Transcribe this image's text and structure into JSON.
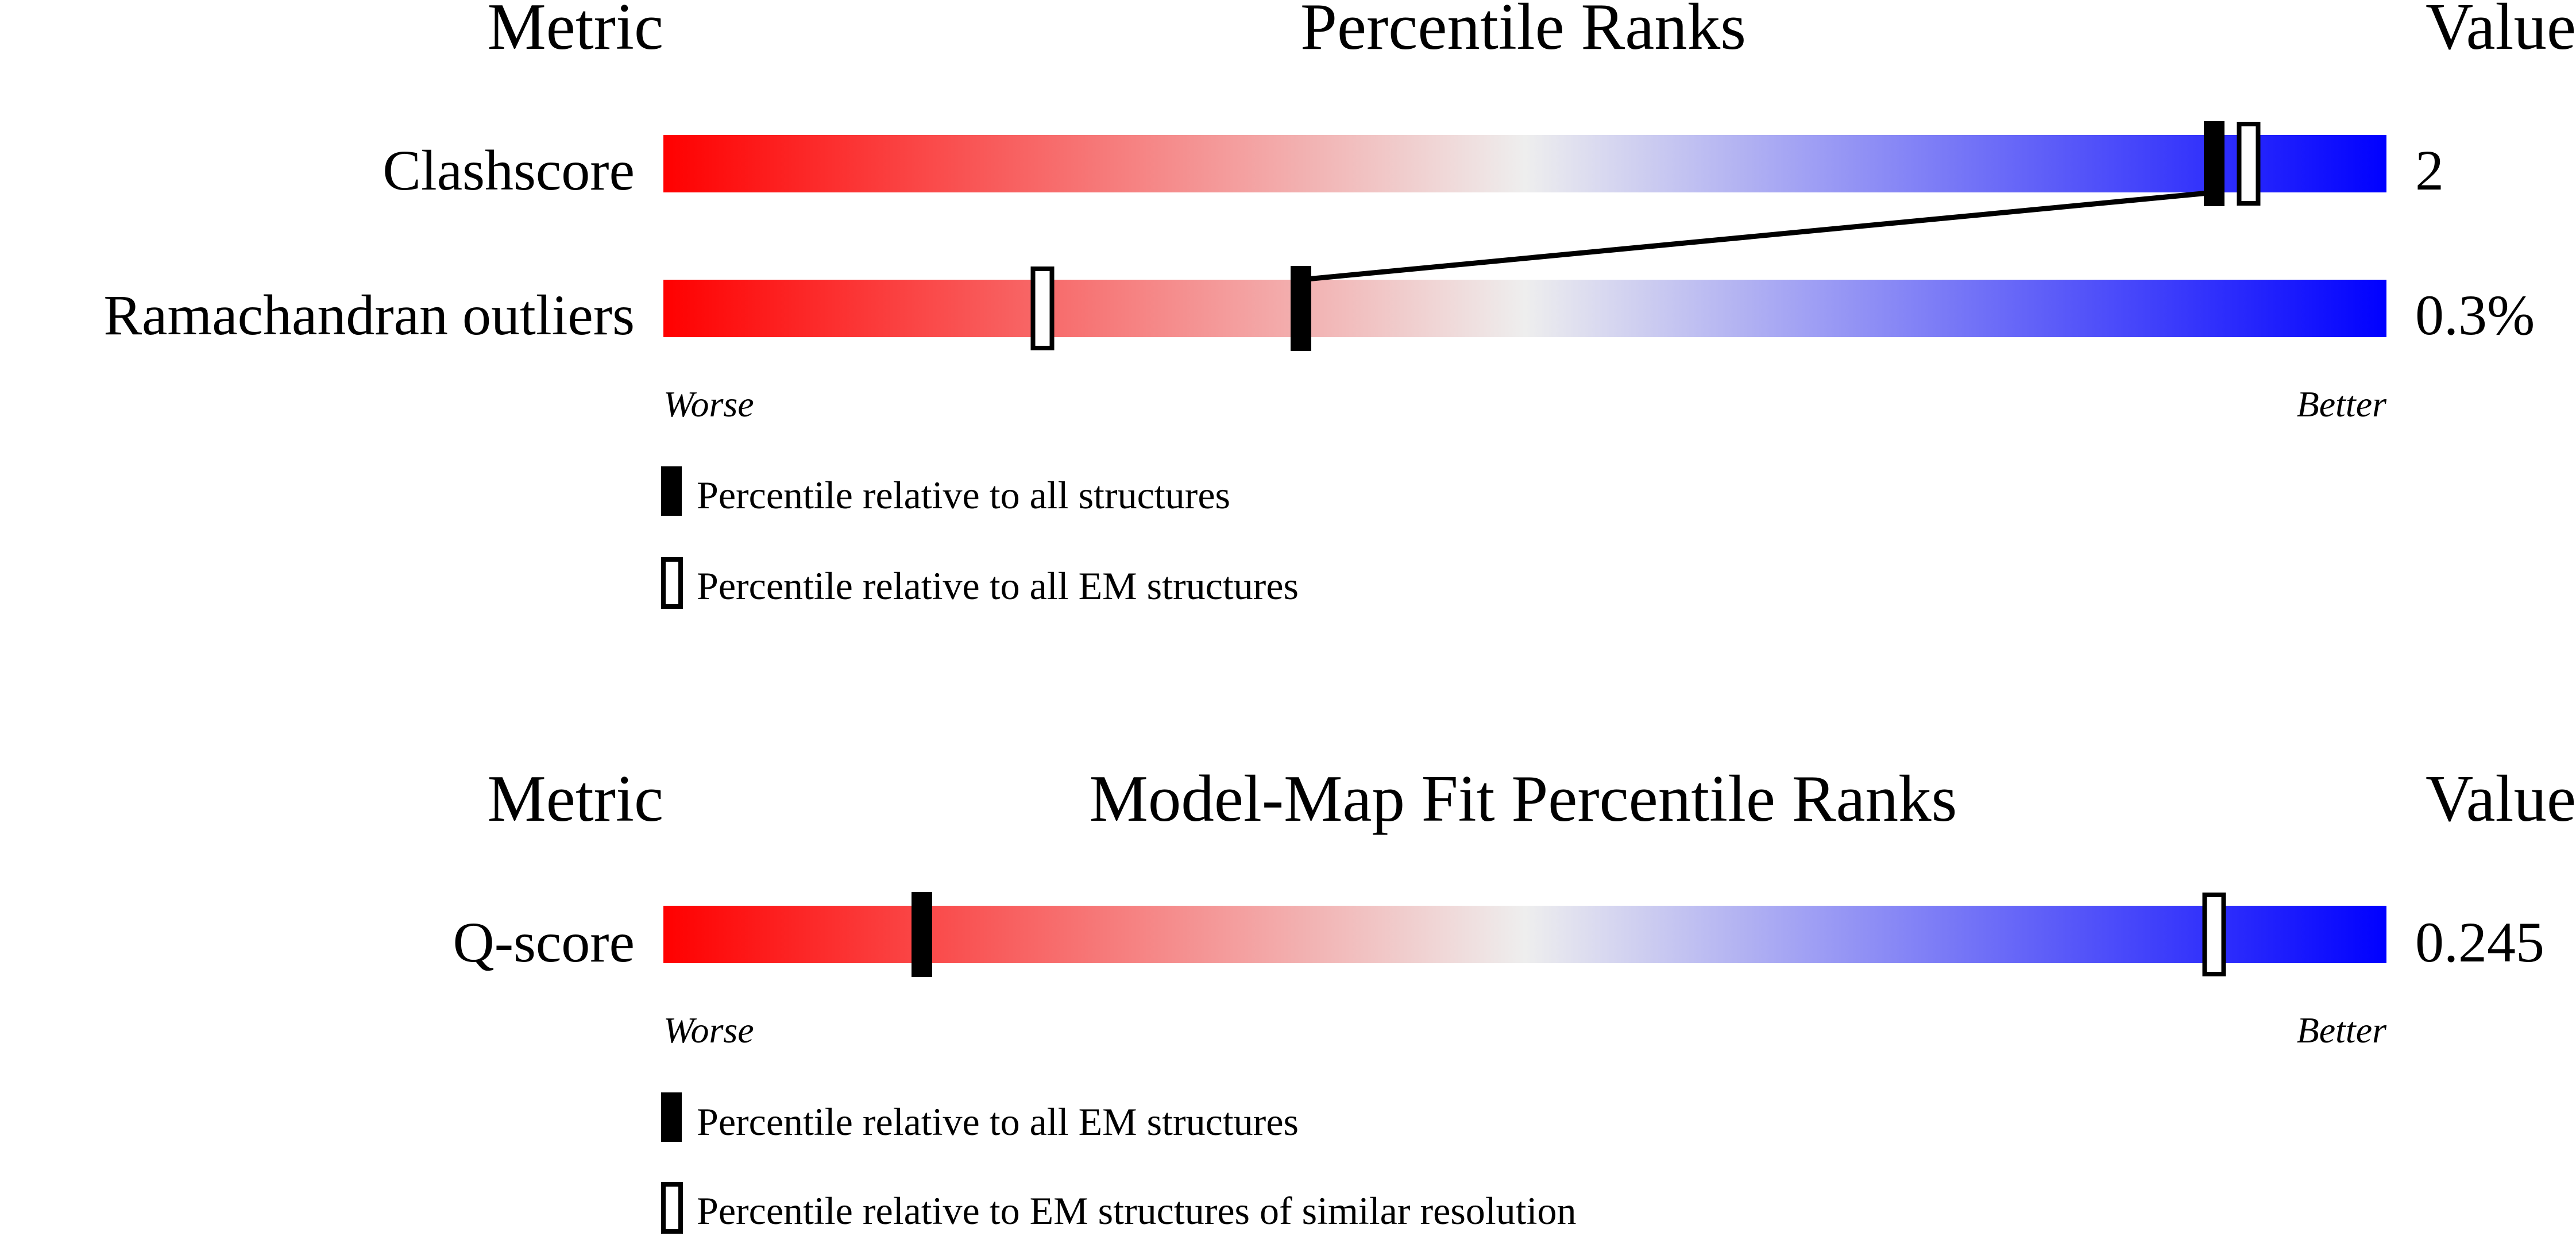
{
  "colors": {
    "worse": "#ff0000",
    "neutral": "#eeeeee",
    "better": "#0000ff",
    "marker": "#000000"
  },
  "chart_data": [
    {
      "type": "percentile-bar",
      "header": {
        "metric": "Metric",
        "title": "Percentile Ranks",
        "value": "Value"
      },
      "x_range": [
        0,
        100
      ],
      "rows": [
        {
          "label": "Clashscore",
          "value_text": "2",
          "percentile_all": 90,
          "percentile_secondary": 92
        },
        {
          "label": "Ramachandran outliers",
          "value_text": "0.3%",
          "percentile_all": 37,
          "percentile_secondary": 22
        }
      ],
      "axis": {
        "left": "Worse",
        "right": "Better"
      },
      "legend": [
        {
          "style": "filled",
          "text": "Percentile relative to all structures"
        },
        {
          "style": "open",
          "text": "Percentile relative to all EM structures"
        }
      ]
    },
    {
      "type": "percentile-bar",
      "header": {
        "metric": "Metric",
        "title": "Model-Map Fit Percentile Ranks",
        "value": "Value"
      },
      "x_range": [
        0,
        100
      ],
      "rows": [
        {
          "label": "Q-score",
          "value_text": "0.245",
          "percentile_all": 15,
          "percentile_secondary": 90
        }
      ],
      "axis": {
        "left": "Worse",
        "right": "Better"
      },
      "legend": [
        {
          "style": "filled",
          "text": "Percentile relative to all EM structures"
        },
        {
          "style": "open",
          "text": "Percentile relative to EM structures of similar resolution"
        }
      ]
    }
  ]
}
